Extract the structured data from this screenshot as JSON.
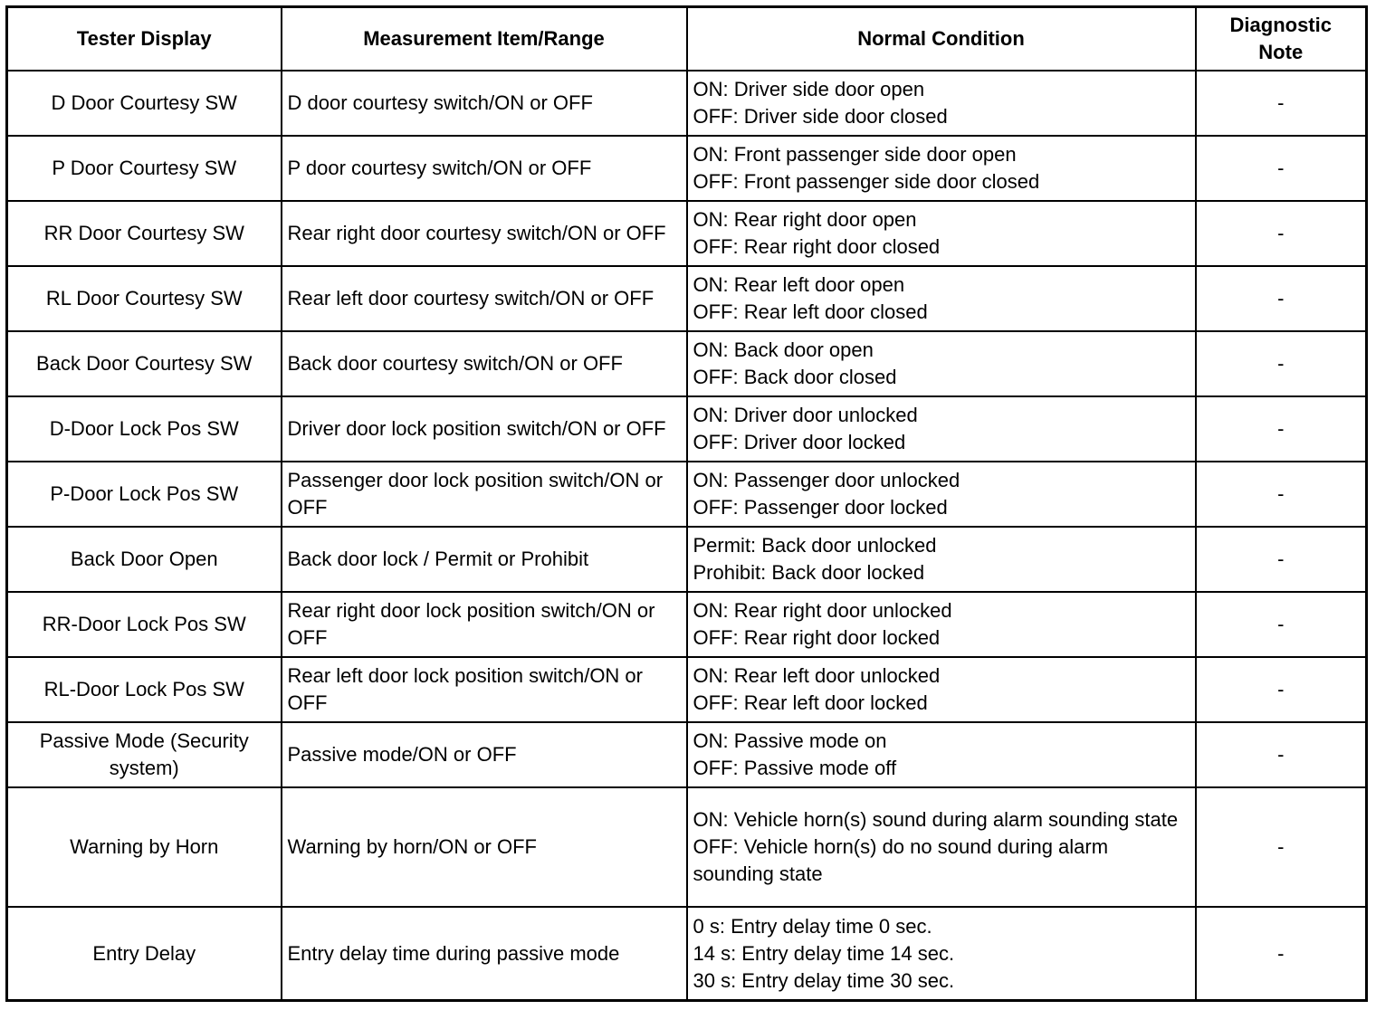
{
  "table": {
    "headers": [
      "Tester Display",
      "Measurement Item/Range",
      "Normal Condition",
      "Diagnostic Note"
    ],
    "rows": [
      {
        "display": "D Door Courtesy SW",
        "item": "D door courtesy switch/ON or OFF",
        "normal": [
          "ON: Driver side door open",
          "OFF: Driver side door closed"
        ],
        "note": "-"
      },
      {
        "display": "P Door Courtesy SW",
        "item": "P door courtesy switch/ON or OFF",
        "normal": [
          "ON: Front passenger side door open",
          "OFF: Front passenger side door closed"
        ],
        "note": "-"
      },
      {
        "display": "RR Door Courtesy SW",
        "item": "Rear right door courtesy switch/ON or OFF",
        "normal": [
          "ON: Rear right door open",
          "OFF: Rear right door closed"
        ],
        "note": "-"
      },
      {
        "display": "RL Door Courtesy SW",
        "item": "Rear left door courtesy switch/ON or OFF",
        "normal": [
          "ON: Rear left door open",
          "OFF: Rear left door closed"
        ],
        "note": "-"
      },
      {
        "display": "Back Door Courtesy SW",
        "item": "Back door courtesy switch/ON or OFF",
        "normal": [
          "ON: Back door open",
          "OFF: Back door closed"
        ],
        "note": "-"
      },
      {
        "display": "D-Door Lock Pos SW",
        "item": "Driver door lock position switch/ON or OFF",
        "normal": [
          "ON: Driver door unlocked",
          "OFF: Driver door locked"
        ],
        "note": "-"
      },
      {
        "display": "P-Door Lock Pos SW",
        "item": "Passenger door lock position switch/ON or OFF",
        "normal": [
          "ON: Passenger door unlocked",
          "OFF: Passenger door locked"
        ],
        "note": "-"
      },
      {
        "display": "Back Door Open",
        "item": "Back door lock / Permit or Prohibit",
        "normal": [
          "Permit: Back door unlocked",
          "Prohibit: Back door locked"
        ],
        "note": "-"
      },
      {
        "display": "RR-Door Lock Pos SW",
        "item": "Rear right door lock position switch/ON or OFF",
        "normal": [
          "ON: Rear right door unlocked",
          "OFF: Rear right door locked"
        ],
        "note": "-"
      },
      {
        "display": "RL-Door Lock Pos SW",
        "item": "Rear left door lock position switch/ON or OFF",
        "normal": [
          "ON: Rear left door unlocked",
          "OFF: Rear left door locked"
        ],
        "note": "-"
      },
      {
        "display": "Passive Mode (Security system)",
        "item": "Passive mode/ON or OFF",
        "normal": [
          "ON: Passive mode on",
          "OFF: Passive mode off"
        ],
        "note": "-"
      },
      {
        "display": "Warning by Horn",
        "item": "Warning by horn/ON or OFF",
        "normal": [
          "ON: Vehicle horn(s) sound during alarm sounding state",
          "OFF: Vehicle horn(s) do no sound during alarm sounding state"
        ],
        "note": "-"
      },
      {
        "display": "Entry Delay",
        "item": "Entry delay time during passive mode",
        "normal": [
          "0 s: Entry delay time 0 sec.",
          "14 s: Entry delay time 14 sec.",
          "30 s: Entry delay time 30 sec."
        ],
        "note": "-"
      }
    ]
  }
}
